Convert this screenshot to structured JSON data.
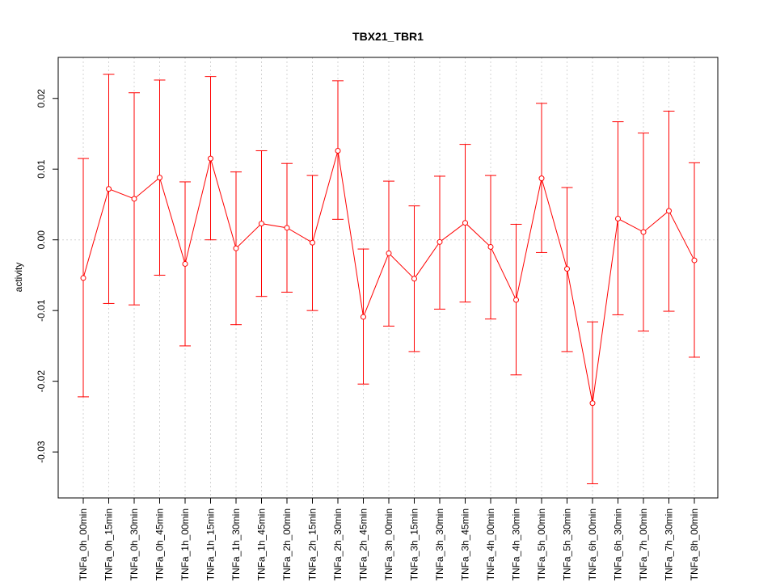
{
  "chart_data": {
    "type": "line",
    "title": "TBX21_TBR1",
    "xlabel": "",
    "ylabel": "activity",
    "ylim": [
      -0.0365,
      0.0258
    ],
    "yticks": [
      -0.03,
      -0.02,
      -0.01,
      0.0,
      0.01,
      0.02
    ],
    "ytick_labels": [
      "-0.03",
      "-0.02",
      "-0.01",
      "0.00",
      "0.01",
      "0.02"
    ],
    "grid": true,
    "zero_line": true,
    "colors": {
      "series": "#ff0000",
      "grid": "#d3d3d3",
      "axis": "#000000"
    },
    "categories": [
      "TNFa_0h_00min",
      "TNFa_0h_15min",
      "TNFa_0h_30min",
      "TNFa_0h_45min",
      "TNFa_1h_00min",
      "TNFa_1h_15min",
      "TNFa_1h_30min",
      "TNFa_1h_45min",
      "TNFa_2h_00min",
      "TNFa_2h_15min",
      "TNFa_2h_30min",
      "TNFa_2h_45min",
      "TNFa_3h_00min",
      "TNFa_3h_15min",
      "TNFa_3h_30min",
      "TNFa_3h_45min",
      "TNFa_4h_00min",
      "TNFa_4h_30min",
      "TNFa_5h_00min",
      "TNFa_5h_30min",
      "TNFa_6h_00min",
      "TNFa_6h_30min",
      "TNFa_7h_00min",
      "TNFa_7h_30min",
      "TNFa_8h_00min"
    ],
    "series": [
      {
        "values": [
          -0.0054,
          0.0072,
          0.0058,
          0.0088,
          -0.0034,
          0.0115,
          -0.0012,
          0.0023,
          0.0017,
          -0.0004,
          0.0126,
          -0.0109,
          -0.0019,
          -0.0055,
          -0.0003,
          0.0024,
          -0.001,
          -0.0085,
          0.0087,
          -0.0041,
          -0.0231,
          0.003,
          0.0011,
          0.0041,
          -0.0029
        ],
        "upper": [
          0.0115,
          0.0234,
          0.0208,
          0.0226,
          0.0082,
          0.0231,
          0.0096,
          0.0126,
          0.0108,
          0.0091,
          0.0225,
          -0.0013,
          0.0083,
          0.0048,
          0.009,
          0.0135,
          0.0091,
          0.0022,
          0.0193,
          0.0074,
          -0.0116,
          0.0167,
          0.0151,
          0.0182,
          0.0109
        ],
        "lower": [
          -0.0222,
          -0.009,
          -0.0092,
          -0.005,
          -0.015,
          0.0,
          -0.012,
          -0.008,
          -0.0074,
          -0.01,
          0.0029,
          -0.0204,
          -0.0122,
          -0.0158,
          -0.0098,
          -0.0088,
          -0.0112,
          -0.0191,
          -0.0018,
          -0.0158,
          -0.0345,
          -0.0106,
          -0.0129,
          -0.0101,
          -0.0166
        ]
      }
    ]
  }
}
